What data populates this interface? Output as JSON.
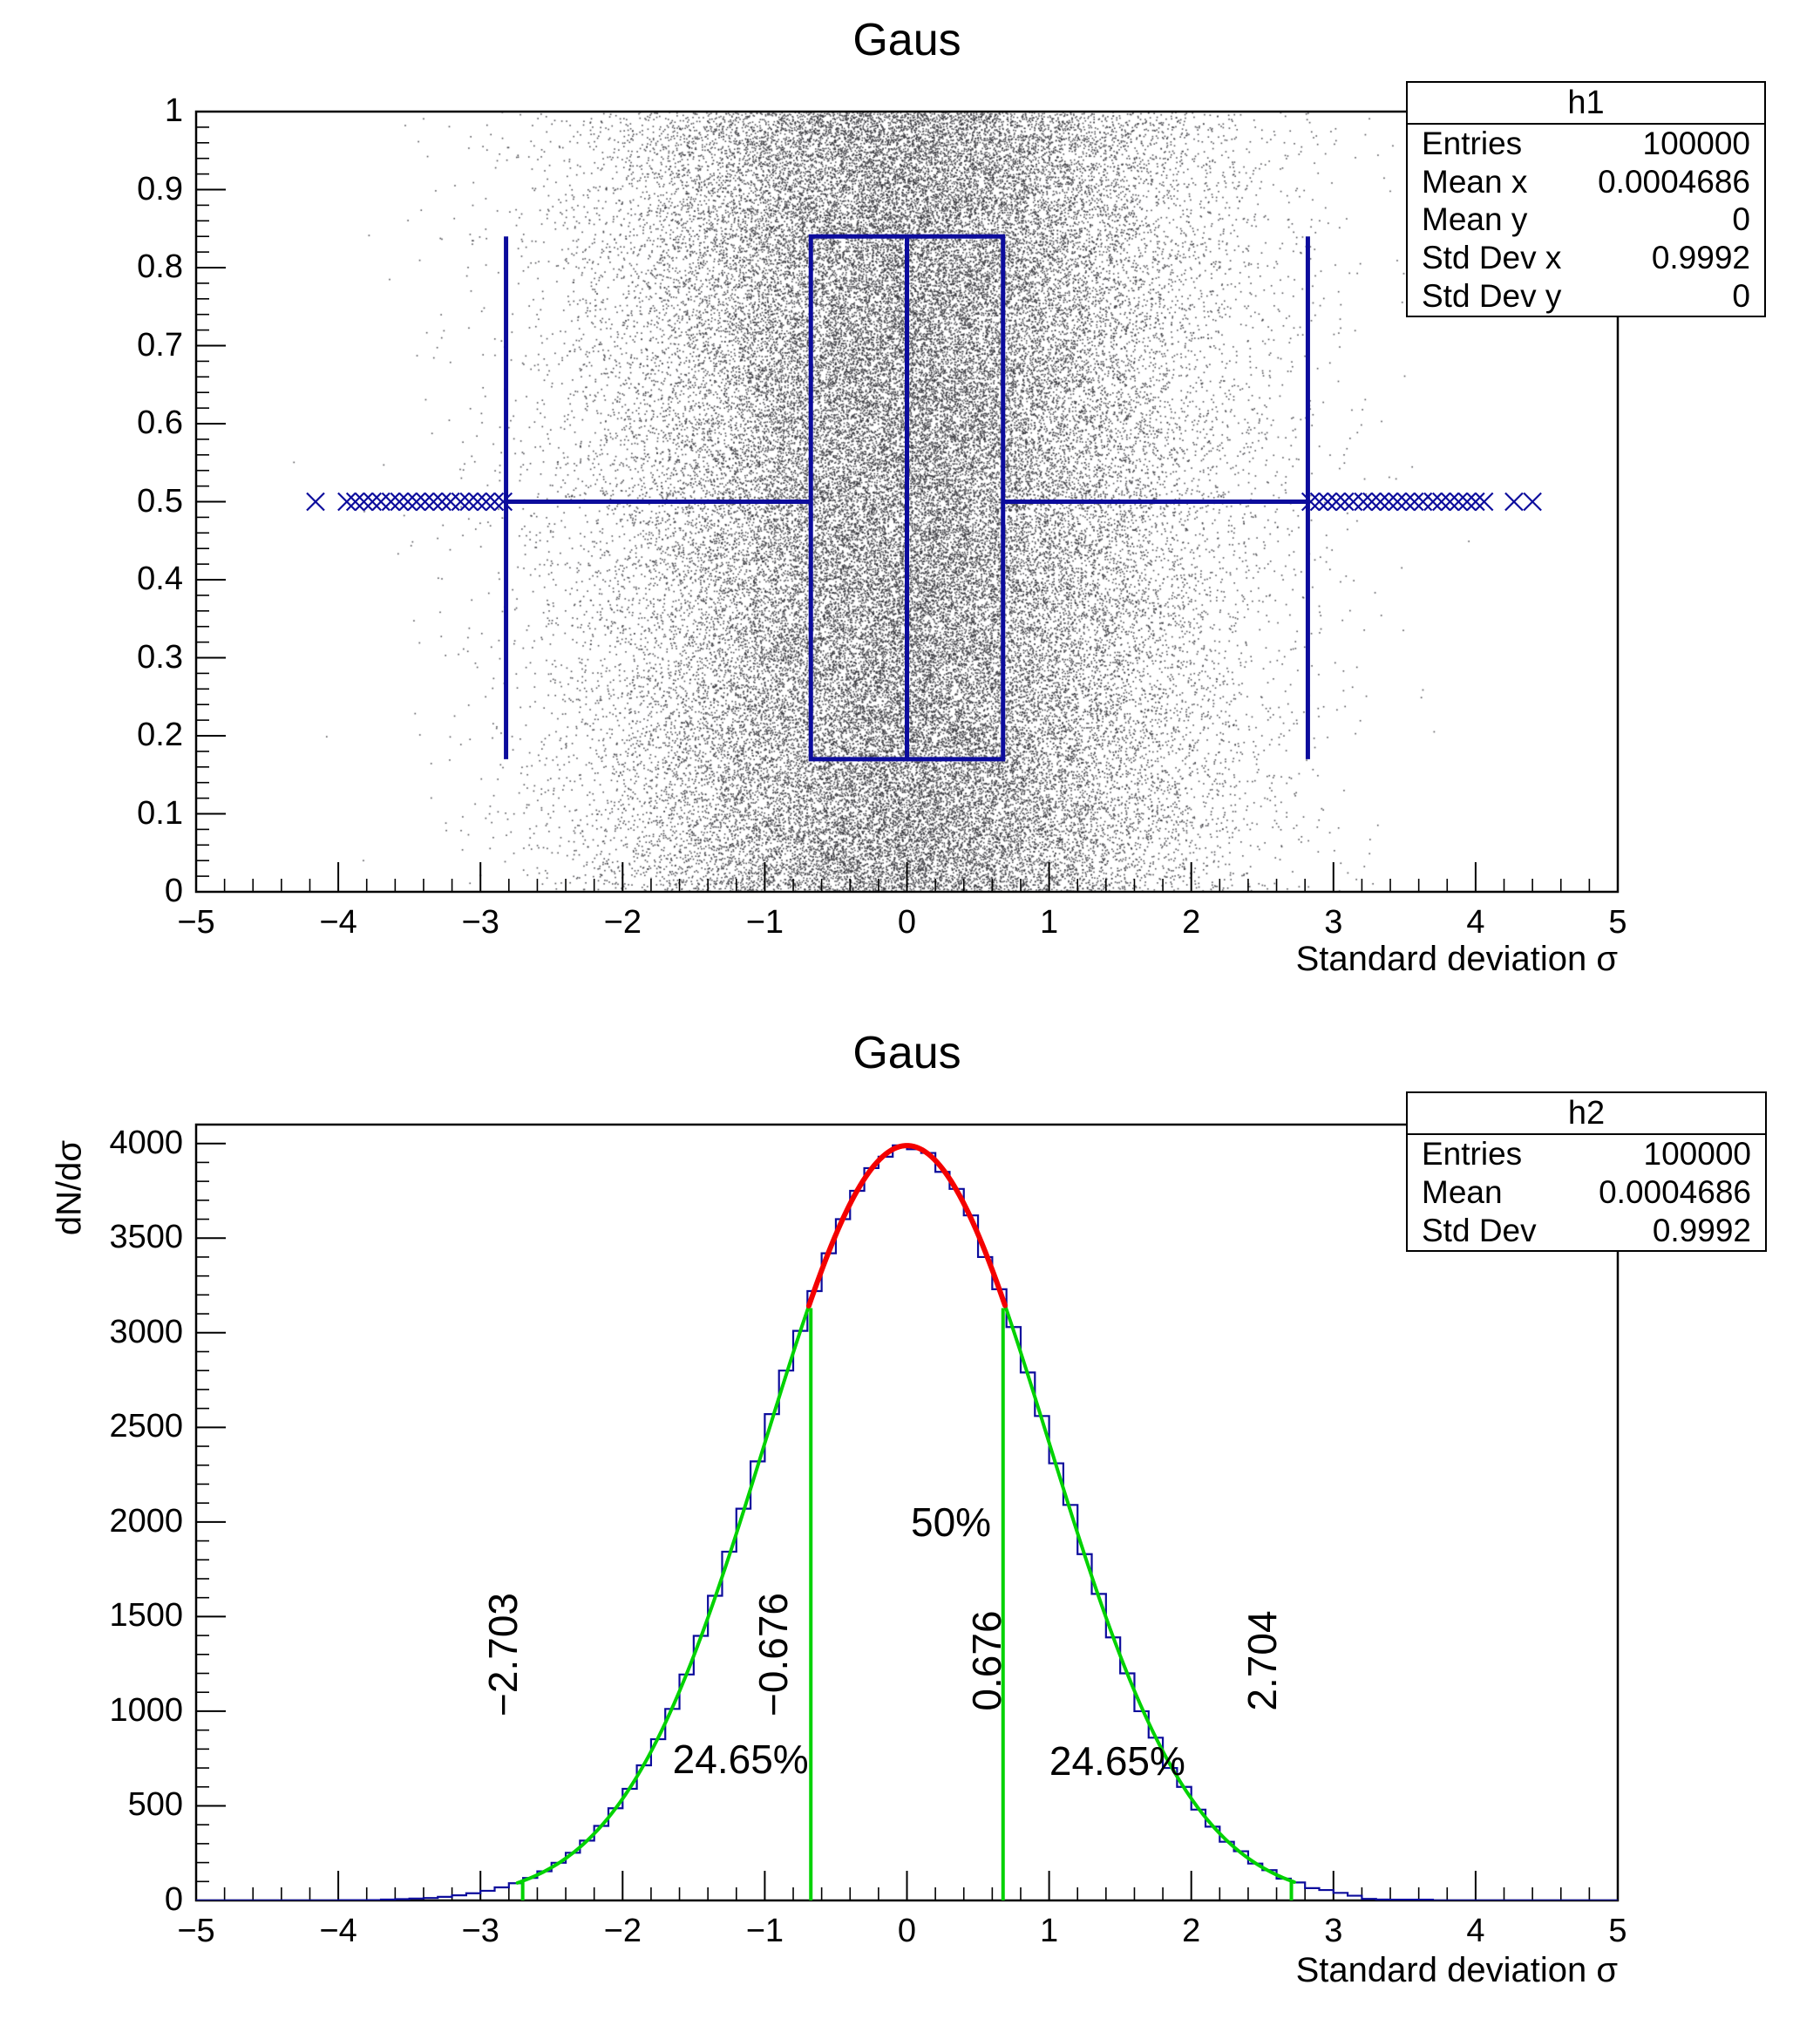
{
  "colors": {
    "marker_navy": "#0c0c9c",
    "scatter_dot": "#3c3c40",
    "fit_green": "#00d200",
    "fit_red": "#f40000",
    "axis_black": "#000000"
  },
  "chart_data": [
    {
      "type": "scatter",
      "subtype": "scatter-with-candle-boxplot",
      "title": "Gaus",
      "xlabel": "Standard deviation σ",
      "ylabel": "",
      "xlim": [
        -5,
        5
      ],
      "ylim": [
        0,
        1
      ],
      "x_tick_labels": [
        "−5",
        "−4",
        "−3",
        "−2",
        "−1",
        "0",
        "1",
        "2",
        "3",
        "4",
        "5"
      ],
      "x_tick_values": [
        -5,
        -4,
        -3,
        -2,
        -1,
        0,
        1,
        2,
        3,
        4,
        5
      ],
      "x_minor_step": 0.2,
      "y_tick_labels": [
        "0",
        "0.1",
        "0.2",
        "0.3",
        "0.4",
        "0.5",
        "0.6",
        "0.7",
        "0.8",
        "0.9",
        "1"
      ],
      "y_tick_values": [
        0,
        0.1,
        0.2,
        0.3,
        0.4,
        0.5,
        0.6,
        0.7,
        0.8,
        0.9,
        1
      ],
      "y_minor_step": 0.02,
      "grid": false,
      "scatter": {
        "n_points_shown_in_stats": 100000,
        "x_distribution": "gaussian",
        "x_mean": 0.0004686,
        "x_sigma": 0.9992,
        "y_distribution": "uniform",
        "y_range": [
          0,
          1
        ]
      },
      "candle": {
        "median_x": 0.0,
        "quartile_low_x": -0.676,
        "quartile_high_x": 0.676,
        "whisker_low_x": -2.82,
        "whisker_high_x": 2.82,
        "whisker_y": 0.5,
        "box_y_bottom": 0.17,
        "box_y_top": 0.84,
        "outliers_left": [
          -4.16,
          -3.94,
          -3.88,
          -3.82,
          -3.76,
          -3.7,
          -3.63,
          -3.57,
          -3.51,
          -3.45,
          -3.39,
          -3.33,
          -3.27,
          -3.21,
          -3.14,
          -3.08,
          -3.02,
          -2.96,
          -2.9,
          -2.84
        ],
        "outliers_right": [
          2.84,
          2.9,
          2.96,
          3.02,
          3.08,
          3.14,
          3.21,
          3.27,
          3.33,
          3.39,
          3.45,
          3.51,
          3.57,
          3.63,
          3.7,
          3.76,
          3.82,
          3.88,
          3.94,
          4.0,
          4.06,
          4.27,
          4.4
        ]
      },
      "stats": {
        "title": "h1",
        "rows": [
          {
            "label": "Entries",
            "value": "100000"
          },
          {
            "label": "Mean x",
            "value": "0.0004686"
          },
          {
            "label": "Mean y",
            "value": "0"
          },
          {
            "label": "Std Dev x",
            "value": "0.9992"
          },
          {
            "label": "Std Dev y",
            "value": "0"
          }
        ]
      }
    },
    {
      "type": "bar",
      "subtype": "step-histogram-with-gaussian-fit",
      "title": "Gaus",
      "xlabel": "Standard deviation σ",
      "ylabel": "dN/dσ",
      "xlim": [
        -5,
        5
      ],
      "ylim": [
        0,
        4100
      ],
      "x_tick_labels": [
        "−5",
        "−4",
        "−3",
        "−2",
        "−1",
        "0",
        "1",
        "2",
        "3",
        "4",
        "5"
      ],
      "x_tick_values": [
        -5,
        -4,
        -3,
        -2,
        -1,
        0,
        1,
        2,
        3,
        4,
        5
      ],
      "x_minor_step": 0.2,
      "y_tick_labels": [
        "0",
        "500",
        "1000",
        "1500",
        "2000",
        "2500",
        "3000",
        "3500",
        "4000"
      ],
      "y_tick_values": [
        0,
        500,
        1000,
        1500,
        2000,
        2500,
        3000,
        3500,
        4000
      ],
      "y_minor_step": 100,
      "grid": false,
      "bins": {
        "start": -5,
        "width": 0.1,
        "counts": [
          0,
          0,
          0,
          0,
          0,
          0,
          0,
          0,
          0,
          0,
          1,
          1,
          2,
          5,
          7,
          10,
          13,
          19,
          27,
          38,
          51,
          69,
          91,
          119,
          154,
          199,
          252,
          316,
          394,
          487,
          590,
          714,
          852,
          1012,
          1194,
          1398,
          1610,
          1843,
          2070,
          2320,
          2570,
          2800,
          3010,
          3220,
          3420,
          3600,
          3750,
          3870,
          3930,
          3990,
          3970,
          3950,
          3850,
          3760,
          3620,
          3400,
          3230,
          3030,
          2790,
          2560,
          2310,
          2090,
          1830,
          1620,
          1390,
          1200,
          1000,
          860,
          700,
          600,
          480,
          390,
          310,
          260,
          195,
          160,
          115,
          95,
          65,
          55,
          40,
          25,
          8,
          5,
          4,
          4,
          4,
          0,
          0,
          0,
          0,
          0,
          0,
          0,
          0,
          0,
          0,
          0,
          0,
          0
        ]
      },
      "fit": {
        "formula": "gaus",
        "amplitude": 3989,
        "mean": 0.0005,
        "sigma": 0.9992,
        "red_range": [
          -0.69,
          0.69
        ],
        "green_ranges": [
          [
            -2.74,
            -0.665
          ],
          [
            0.665,
            2.74
          ]
        ]
      },
      "quantile_lines": [
        {
          "x": -2.703,
          "top_value": 110,
          "style": "short-tick"
        },
        {
          "x": -0.676,
          "top_value": 3130,
          "style": "full-line"
        },
        {
          "x": 0.676,
          "top_value": 3130,
          "style": "full-line"
        },
        {
          "x": 2.704,
          "top_value": 110,
          "style": "short-tick"
        }
      ],
      "annotations": [
        {
          "text": "50%",
          "x": 0.31,
          "y": 2000,
          "rotated": false
        },
        {
          "text": "24.65%",
          "x": -1.17,
          "y": 745,
          "rotated": false
        },
        {
          "text": "24.65%",
          "x": 1.48,
          "y": 735,
          "rotated": false
        },
        {
          "text": "−2.703",
          "x": -2.84,
          "y": 1300,
          "rotated": true
        },
        {
          "text": "−0.676",
          "x": -0.94,
          "y": 1300,
          "rotated": true
        },
        {
          "text": "0.676",
          "x": 0.56,
          "y": 1265,
          "rotated": true
        },
        {
          "text": "2.704",
          "x": 2.5,
          "y": 1265,
          "rotated": true
        }
      ],
      "stats": {
        "title": "h2",
        "rows": [
          {
            "label": "Entries",
            "value": "100000"
          },
          {
            "label": "Mean",
            "value": "0.0004686"
          },
          {
            "label": "Std Dev",
            "value": "0.9992"
          }
        ]
      }
    }
  ]
}
